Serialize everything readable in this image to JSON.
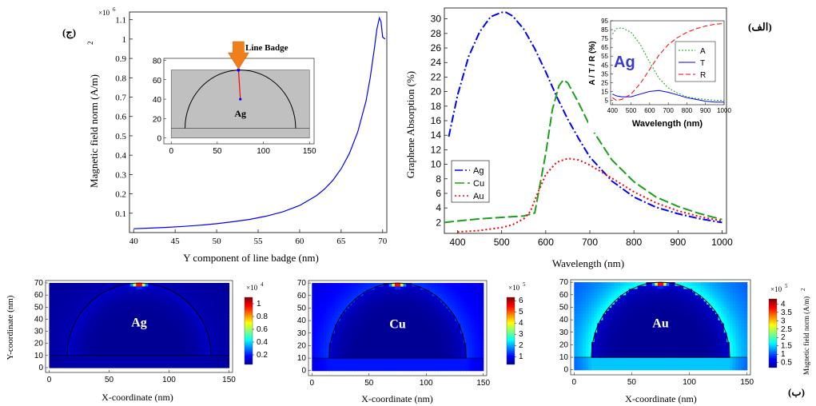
{
  "panel_labels": {
    "c": "(ج)",
    "a": "(الف)",
    "b": "(ب)"
  },
  "colors": {
    "ag": "#0000ff",
    "cu": "#1aa01a",
    "au": "#ff0000",
    "arrow": "#f07f1a",
    "gray": "#c0c0c0"
  },
  "chart_data": [
    {
      "id": "field-vs-y",
      "type": "line",
      "title": "",
      "xlabel": "Y component of line badge (nm)",
      "ylabel": "Magnetic field norm (A/m)",
      "ylabel_sup": "2",
      "y_multiplier": "×10",
      "y_multiplier_exp": "6",
      "xlim": [
        39.5,
        70.5
      ],
      "ylim": [
        0,
        1.14
      ],
      "xticks": [
        40,
        45,
        50,
        55,
        60,
        65,
        70
      ],
      "yticks": [
        0.1,
        0.2,
        0.3,
        0.4,
        0.5,
        0.6,
        0.7,
        0.8,
        0.9,
        1,
        1.1
      ],
      "series": [
        {
          "color": "#0000ff",
          "x": [
            40,
            42,
            44,
            46,
            48,
            50,
            52,
            54,
            56,
            58,
            60,
            62,
            63,
            64,
            65,
            66,
            67,
            68,
            68.5,
            69,
            69.3,
            69.6,
            69.8,
            70,
            70.3
          ],
          "y": [
            0.02,
            0.023,
            0.027,
            0.032,
            0.038,
            0.046,
            0.056,
            0.068,
            0.085,
            0.108,
            0.14,
            0.19,
            0.225,
            0.27,
            0.33,
            0.41,
            0.52,
            0.68,
            0.8,
            0.95,
            1.05,
            1.11,
            1.09,
            1.01,
            1.0
          ]
        }
      ],
      "inset": {
        "material": "Ag",
        "arrow_label": "Line Badge",
        "xticks": [
          0,
          50,
          100,
          150
        ],
        "yticks": [
          0,
          20,
          40,
          60,
          80
        ],
        "xlim": [
          -8,
          155
        ],
        "ylim": [
          -6,
          82
        ]
      }
    },
    {
      "id": "absorption",
      "type": "line",
      "title": "",
      "xlabel": "Wavelength (nm)",
      "ylabel": "Graphene  Absorption (%)",
      "xlim": [
        370,
        1010
      ],
      "ylim": [
        0.5,
        31.5
      ],
      "xticks": [
        400,
        500,
        600,
        700,
        800,
        900,
        1000
      ],
      "yticks": [
        2,
        4,
        6,
        8,
        10,
        12,
        14,
        16,
        18,
        20,
        22,
        24,
        26,
        28,
        30
      ],
      "legend_position": "left",
      "series": [
        {
          "name": "Ag",
          "color": "#0000ff",
          "dash": "10,3,2,3",
          "x": [
            380,
            400,
            425,
            450,
            475,
            500,
            510,
            525,
            550,
            575,
            600,
            625,
            650,
            675,
            700,
            750,
            800,
            850,
            900,
            950,
            1000
          ],
          "y": [
            13.8,
            19.5,
            24.8,
            28.2,
            30.3,
            30.9,
            30.9,
            30.4,
            28.6,
            25.9,
            22.7,
            19.3,
            16.2,
            13.5,
            11.0,
            7.7,
            5.5,
            4.1,
            3.2,
            2.5,
            2.0
          ]
        },
        {
          "name": "Cu",
          "color": "#1aa01a",
          "dash": "12,4",
          "x": [
            370,
            400,
            450,
            500,
            550,
            575,
            600,
            615,
            630,
            640,
            650,
            675,
            700,
            750,
            800,
            850,
            900,
            950,
            1000
          ],
          "y": [
            2.0,
            2.2,
            2.5,
            2.7,
            2.9,
            3.3,
            11.5,
            17.5,
            20.8,
            21.6,
            21.2,
            18.4,
            15.3,
            10.6,
            7.6,
            5.5,
            4.2,
            3.2,
            2.4
          ]
        },
        {
          "name": "Au",
          "color": "#ff0000",
          "dash": "2,3",
          "x": [
            400,
            450,
            500,
            525,
            550,
            565,
            580,
            600,
            625,
            650,
            675,
            700,
            750,
            800,
            850,
            900,
            950,
            1000
          ],
          "y": [
            0.7,
            0.9,
            1.3,
            1.7,
            2.5,
            3.5,
            5.8,
            8.6,
            10.3,
            10.8,
            10.6,
            9.9,
            8.1,
            6.2,
            4.7,
            3.6,
            2.8,
            2.2
          ]
        }
      ],
      "inset": {
        "type": "line",
        "material": "Ag",
        "xlabel": "Wavelength (nm)",
        "ylabel": "A / T / R (%)",
        "xlim": [
          390,
          1000
        ],
        "ylim": [
          0,
          95
        ],
        "xticks": [
          400,
          500,
          600,
          700,
          800,
          900,
          1000
        ],
        "yticks": [
          5,
          15,
          25,
          35,
          45,
          55,
          65,
          75,
          85,
          95
        ],
        "series": [
          {
            "name": "A",
            "color": "#1aa01a",
            "dash": "2,2",
            "x": [
              400,
              420,
              450,
              500,
              550,
              600,
              650,
              700,
              750,
              800,
              850,
              900,
              950,
              1000
            ],
            "y": [
              80,
              86,
              87,
              82,
              68,
              48,
              30,
              19,
              13,
              9,
              7,
              6,
              5,
              5
            ]
          },
          {
            "name": "T",
            "color": "#0000ff",
            "dash": "",
            "x": [
              400,
              420,
              450,
              500,
              550,
              600,
              650,
              700,
              750,
              800,
              850,
              900,
              950,
              1000
            ],
            "y": [
              12,
              10,
              9,
              9,
              12,
              15,
              16,
              14,
              11,
              8,
              6,
              4,
              3,
              3
            ]
          },
          {
            "name": "R",
            "color": "#ff0000",
            "dash": "6,3",
            "x": [
              400,
              420,
              450,
              500,
              550,
              600,
              650,
              700,
              750,
              800,
              850,
              900,
              950,
              1000
            ],
            "y": [
              8,
              5,
              6,
              12,
              24,
              40,
              56,
              68,
              76,
              82,
              86,
              89,
              91,
              92
            ]
          }
        ]
      }
    },
    {
      "id": "map-ag",
      "type": "heatmap",
      "material": "Ag",
      "xlabel": "X-coordinate (nm)",
      "ylabel": "Y-coordinate (nm)",
      "xlim": [
        -3,
        153
      ],
      "ylim": [
        -4,
        72
      ],
      "xticks": [
        0,
        50,
        100,
        150
      ],
      "yticks": [
        0,
        10,
        20,
        30,
        40,
        50,
        60,
        70
      ],
      "colorbar_unit": "×10",
      "colorbar_exp": "4",
      "colorbar_ticks": [
        0.2,
        0.4,
        0.6,
        0.8,
        1
      ],
      "colorbar_max": 1.1,
      "colorbar_min": 0.05,
      "bg_level": 0.05
    },
    {
      "id": "map-cu",
      "type": "heatmap",
      "material": "Cu",
      "xlabel": "X-coordinate (nm)",
      "ylabel": "",
      "xlim": [
        -3,
        153
      ],
      "ylim": [
        -4,
        72
      ],
      "xticks": [
        0,
        50,
        100,
        150
      ],
      "yticks": [
        0,
        10,
        20,
        30,
        40,
        50,
        60,
        70
      ],
      "colorbar_unit": "×10",
      "colorbar_exp": "5",
      "colorbar_ticks": [
        1,
        2,
        3,
        4,
        5,
        6
      ],
      "colorbar_max": 6.3,
      "colorbar_min": 0.3,
      "bg_level": 0.18
    },
    {
      "id": "map-au",
      "type": "heatmap",
      "material": "Au",
      "xlabel": "X-coordinate (nm)",
      "ylabel": "",
      "xlim": [
        -3,
        153
      ],
      "ylim": [
        -4,
        72
      ],
      "xticks": [
        0,
        50,
        100,
        150
      ],
      "yticks": [
        0,
        10,
        20,
        30,
        40,
        50,
        60,
        70
      ],
      "colorbar_unit": "×10",
      "colorbar_exp": "5",
      "colorbar_ticks": [
        0.5,
        1,
        1.5,
        2,
        2.5,
        3,
        3.5,
        4
      ],
      "colorbar_max": 4.3,
      "colorbar_min": 0.2,
      "colorbar_label": "Magnetic field norm (A/m)",
      "colorbar_label_sup": "2",
      "bg_level": 0.4
    }
  ]
}
